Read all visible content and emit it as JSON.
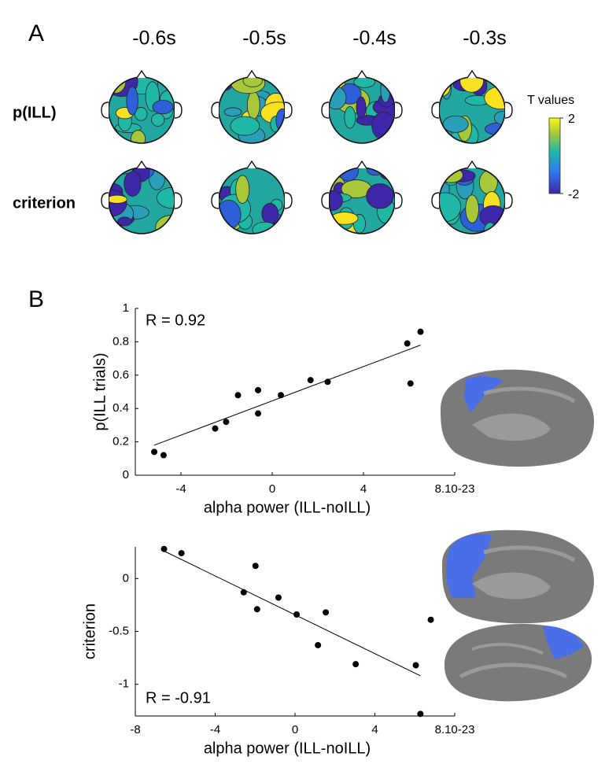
{
  "figure": {
    "panel_labels": [
      "A",
      "B"
    ]
  },
  "topomaps": {
    "times": [
      "-0.6s",
      "-0.5s",
      "-0.4s",
      "-0.3s"
    ],
    "rows": [
      "p(ILL)",
      "criterion"
    ],
    "colorbar": {
      "label": "T values",
      "lim": [
        -2,
        2
      ],
      "ticks": [
        -2,
        2
      ]
    }
  },
  "chart_data": [
    {
      "type": "scatter",
      "x_label": "alpha power (ILL-noILL)",
      "y_label": "p(ILL trials)",
      "annotation": "R = 0.92",
      "x": [
        -5.17,
        -4.76,
        -2.5,
        -2.02,
        -1.5,
        -0.62,
        -0.62,
        0.38,
        1.68,
        2.43,
        5.92,
        6.06,
        6.5
      ],
      "y": [
        0.14,
        0.12,
        0.28,
        0.32,
        0.48,
        0.51,
        0.37,
        0.48,
        0.57,
        0.56,
        0.79,
        0.55,
        0.86
      ],
      "fit": {
        "x": [
          -5.17,
          6.5
        ],
        "y": [
          0.18,
          0.78
        ]
      },
      "xlim": [
        -6,
        8
      ],
      "xticks": [
        -4,
        0,
        4,
        {
          "value": 8,
          "label": "8.10-23"
        }
      ],
      "ylim": [
        0,
        1
      ],
      "yticks": [
        0,
        0.2,
        0.4,
        0.6,
        0.8,
        1
      ]
    },
    {
      "type": "scatter",
      "x_label": "alpha power (ILL-noILL)",
      "y_label": "criterion",
      "annotation": "R = -0.91",
      "x": [
        -6.56,
        -5.69,
        -2.57,
        -1.98,
        -1.9,
        -0.83,
        0.08,
        1.15,
        1.54,
        3.04,
        6.05,
        6.28,
        6.8
      ],
      "y": [
        0.28,
        0.24,
        -0.13,
        0.12,
        -0.29,
        -0.18,
        -0.34,
        -0.63,
        -0.32,
        -0.81,
        -0.82,
        -1.28,
        -0.39
      ],
      "fit": {
        "x": [
          -6.56,
          6.28
        ],
        "y": [
          0.26,
          -0.92
        ]
      },
      "xlim": [
        -8,
        8
      ],
      "xticks": [
        -8,
        -4,
        0,
        4,
        {
          "value": 8,
          "label": "8.10-23"
        }
      ],
      "ylim": [
        -1.3,
        0.3
      ],
      "yticks": [
        -1,
        -0.5,
        0
      ]
    }
  ]
}
